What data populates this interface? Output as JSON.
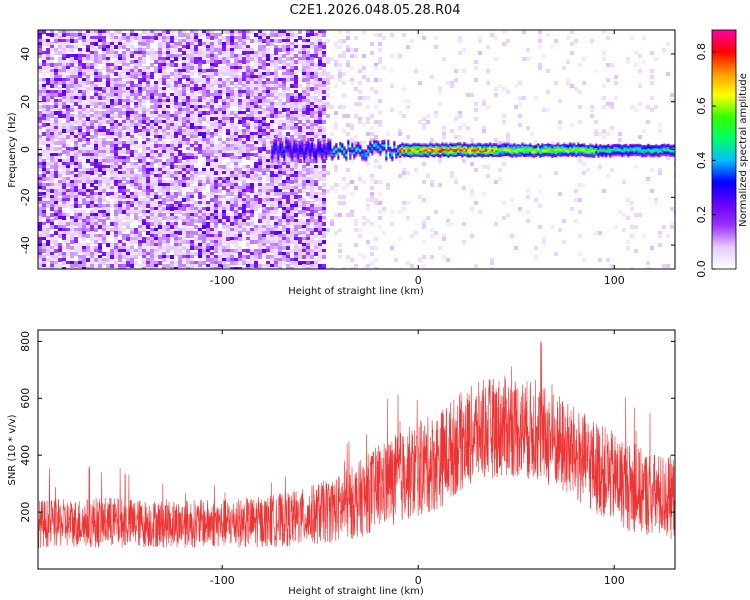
{
  "title": "C2E1.2026.048.05.28.R04",
  "chart_data": [
    {
      "type": "heatmap",
      "xlabel": "Height of straight line (km)",
      "ylabel": "Frequency (Hz)",
      "xlim": [
        -194,
        131
      ],
      "ylim": [
        -50,
        50
      ],
      "xticks": [
        -100,
        0,
        100
      ],
      "xtick_labels": [
        "-100",
        "0",
        "100"
      ],
      "yticks": [
        -40,
        -20,
        0,
        20,
        40
      ],
      "ytick_labels": [
        "-40",
        "-20",
        "0",
        "20",
        "40"
      ],
      "colorbar": {
        "label": "Normalized spectral amplitude",
        "range": [
          0,
          0.88
        ],
        "ticks": [
          0,
          0.2,
          0.4,
          0.6,
          0.8
        ],
        "tick_labels": [
          "0.0",
          "0.2",
          "0.4",
          "0.6",
          "0.8"
        ],
        "colormap": [
          "#ffffff",
          "#e6ccff",
          "#9933ff",
          "#6600ff",
          "#0000ff",
          "#00bfff",
          "#00ff66",
          "#33ff00",
          "#ffff00",
          "#ff9900",
          "#ff0000",
          "#ff00aa"
        ]
      },
      "features": [
        {
          "name": "dense noise region",
          "x_range": [
            -194,
            -48
          ],
          "y_range": [
            -50,
            50
          ],
          "amplitude": 0.1
        },
        {
          "name": "sparse noise region",
          "x_range": [
            -48,
            131
          ],
          "y_range": [
            -50,
            50
          ],
          "amplitude": 0.03
        },
        {
          "name": "signal ridge",
          "x_range": [
            -75,
            131
          ],
          "frequency_hz": 0,
          "peak_amplitude": 0.85
        }
      ]
    },
    {
      "type": "line",
      "xlabel": "Height of straight line (km)",
      "ylabel": "SNR (10 * v/v)",
      "xlim": [
        -194,
        131
      ],
      "ylim": [
        0,
        840
      ],
      "xticks": [
        -100,
        0,
        100
      ],
      "xtick_labels": [
        "-100",
        "0",
        "100"
      ],
      "yticks": [
        200,
        400,
        600,
        800
      ],
      "ytick_labels": [
        "200",
        "400",
        "600",
        "800"
      ],
      "series": [
        {
          "name": "SNR",
          "color": "#ee3333",
          "x": [
            -194,
            -180,
            -160,
            -140,
            -120,
            -100,
            -80,
            -60,
            -40,
            -30,
            -20,
            -10,
            0,
            10,
            20,
            30,
            40,
            50,
            60,
            70,
            80,
            90,
            100,
            110,
            120,
            131
          ],
          "y": [
            160,
            160,
            165,
            160,
            160,
            160,
            165,
            180,
            215,
            245,
            290,
            320,
            350,
            380,
            440,
            480,
            500,
            500,
            480,
            450,
            400,
            360,
            320,
            280,
            260,
            250
          ],
          "spread": [
            85,
            85,
            90,
            85,
            85,
            85,
            90,
            100,
            120,
            135,
            150,
            160,
            170,
            175,
            175,
            175,
            180,
            180,
            175,
            175,
            170,
            165,
            160,
            155,
            150,
            150
          ]
        }
      ]
    }
  ]
}
